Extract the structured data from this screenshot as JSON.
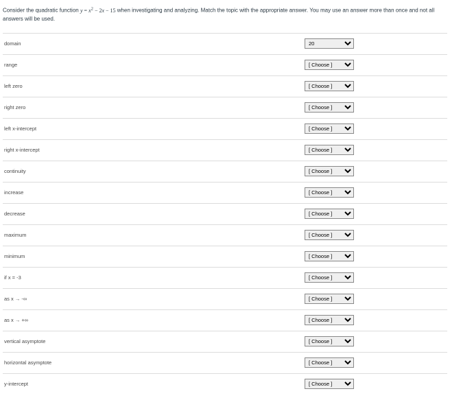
{
  "prompt": {
    "lead": "Consider the quadratic function ",
    "tail": " when investigating and analyzing.  Match the topic with the appropriate answer.  You may use an answer more than once and not all answers will be used."
  },
  "placeholder": "[ Choose ]",
  "rows": [
    {
      "label": "domain",
      "value": "20"
    },
    {
      "label": "range",
      "value": ""
    },
    {
      "label": "left zero",
      "value": ""
    },
    {
      "label": "right zero",
      "value": ""
    },
    {
      "label": "left x-intercept",
      "value": ""
    },
    {
      "label": "right x-intercept",
      "value": ""
    },
    {
      "label": "continuity",
      "value": ""
    },
    {
      "label": "increase",
      "value": ""
    },
    {
      "label": "decrease",
      "value": ""
    },
    {
      "label": "maximum",
      "value": ""
    },
    {
      "label": "minimum",
      "value": ""
    },
    {
      "label": "if x = -3",
      "value": ""
    },
    {
      "label": "as x → -∞",
      "value": ""
    },
    {
      "label": "as x → +∞",
      "value": ""
    },
    {
      "label": "vertical asymptote",
      "value": ""
    },
    {
      "label": "horizontal asymptote",
      "value": ""
    },
    {
      "label": "y-intercept",
      "value": ""
    }
  ]
}
